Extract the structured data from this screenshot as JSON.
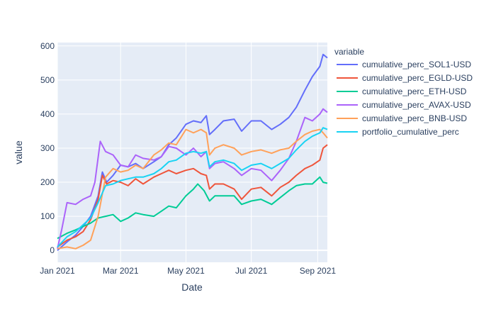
{
  "chart_data": {
    "type": "line",
    "xlabel": "Date",
    "ylabel": "value",
    "x_range": [
      "2021-01-01",
      "2021-09-10"
    ],
    "ylim": [
      -35,
      610
    ],
    "x_ticks": [
      {
        "date": "2021-01-01",
        "label": "Jan 2021"
      },
      {
        "date": "2021-03-01",
        "label": "Mar 2021"
      },
      {
        "date": "2021-05-01",
        "label": "May 2021"
      },
      {
        "date": "2021-07-01",
        "label": "Jul 2021"
      },
      {
        "date": "2021-09-01",
        "label": "Sep 2021"
      }
    ],
    "y_ticks": [
      0,
      100,
      200,
      300,
      400,
      500,
      600
    ],
    "grid": true,
    "background": "#e5ecf6",
    "legend": {
      "title": "variable",
      "position": "right"
    },
    "series": [
      {
        "name": "cumulative_perc_SOL1-USD",
        "color": "#636efa",
        "points": [
          [
            "2021-01-01",
            0
          ],
          [
            "2021-01-10",
            25
          ],
          [
            "2021-01-18",
            45
          ],
          [
            "2021-01-25",
            70
          ],
          [
            "2021-02-01",
            100
          ],
          [
            "2021-02-08",
            160
          ],
          [
            "2021-02-12",
            230
          ],
          [
            "2021-02-16",
            200
          ],
          [
            "2021-02-22",
            220
          ],
          [
            "2021-03-01",
            250
          ],
          [
            "2021-03-08",
            245
          ],
          [
            "2021-03-15",
            255
          ],
          [
            "2021-03-22",
            240
          ],
          [
            "2021-04-01",
            260
          ],
          [
            "2021-04-08",
            275
          ],
          [
            "2021-04-15",
            310
          ],
          [
            "2021-04-22",
            330
          ],
          [
            "2021-05-01",
            370
          ],
          [
            "2021-05-08",
            380
          ],
          [
            "2021-05-15",
            375
          ],
          [
            "2021-05-20",
            395
          ],
          [
            "2021-05-23",
            340
          ],
          [
            "2021-05-28",
            355
          ],
          [
            "2021-06-05",
            380
          ],
          [
            "2021-06-15",
            385
          ],
          [
            "2021-06-22",
            350
          ],
          [
            "2021-07-01",
            380
          ],
          [
            "2021-07-10",
            380
          ],
          [
            "2021-07-20",
            355
          ],
          [
            "2021-07-28",
            370
          ],
          [
            "2021-08-05",
            390
          ],
          [
            "2021-08-12",
            420
          ],
          [
            "2021-08-20",
            470
          ],
          [
            "2021-08-27",
            510
          ],
          [
            "2021-09-03",
            540
          ],
          [
            "2021-09-06",
            575
          ],
          [
            "2021-09-10",
            565
          ]
        ]
      },
      {
        "name": "cumulative_perc_EGLD-USD",
        "color": "#ef553b",
        "points": [
          [
            "2021-01-01",
            10
          ],
          [
            "2021-01-10",
            30
          ],
          [
            "2021-01-18",
            40
          ],
          [
            "2021-01-25",
            55
          ],
          [
            "2021-02-01",
            90
          ],
          [
            "2021-02-08",
            150
          ],
          [
            "2021-02-12",
            220
          ],
          [
            "2021-02-16",
            195
          ],
          [
            "2021-02-22",
            205
          ],
          [
            "2021-03-01",
            200
          ],
          [
            "2021-03-08",
            190
          ],
          [
            "2021-03-15",
            210
          ],
          [
            "2021-03-22",
            195
          ],
          [
            "2021-04-01",
            215
          ],
          [
            "2021-04-08",
            225
          ],
          [
            "2021-04-15",
            235
          ],
          [
            "2021-04-22",
            225
          ],
          [
            "2021-05-01",
            235
          ],
          [
            "2021-05-08",
            240
          ],
          [
            "2021-05-15",
            225
          ],
          [
            "2021-05-20",
            220
          ],
          [
            "2021-05-23",
            180
          ],
          [
            "2021-05-28",
            195
          ],
          [
            "2021-06-05",
            195
          ],
          [
            "2021-06-15",
            180
          ],
          [
            "2021-06-22",
            150
          ],
          [
            "2021-07-01",
            180
          ],
          [
            "2021-07-10",
            185
          ],
          [
            "2021-07-20",
            160
          ],
          [
            "2021-07-28",
            185
          ],
          [
            "2021-08-05",
            200
          ],
          [
            "2021-08-12",
            220
          ],
          [
            "2021-08-20",
            240
          ],
          [
            "2021-08-27",
            250
          ],
          [
            "2021-09-03",
            265
          ],
          [
            "2021-09-06",
            300
          ],
          [
            "2021-09-10",
            310
          ]
        ]
      },
      {
        "name": "cumulative_perc_ETH-USD",
        "color": "#00cc96",
        "points": [
          [
            "2021-01-01",
            35
          ],
          [
            "2021-01-10",
            50
          ],
          [
            "2021-01-18",
            60
          ],
          [
            "2021-01-25",
            70
          ],
          [
            "2021-02-01",
            80
          ],
          [
            "2021-02-08",
            95
          ],
          [
            "2021-02-15",
            100
          ],
          [
            "2021-02-22",
            105
          ],
          [
            "2021-03-01",
            85
          ],
          [
            "2021-03-08",
            95
          ],
          [
            "2021-03-15",
            110
          ],
          [
            "2021-03-22",
            105
          ],
          [
            "2021-04-01",
            100
          ],
          [
            "2021-04-08",
            115
          ],
          [
            "2021-04-15",
            130
          ],
          [
            "2021-04-22",
            125
          ],
          [
            "2021-05-01",
            160
          ],
          [
            "2021-05-08",
            180
          ],
          [
            "2021-05-12",
            195
          ],
          [
            "2021-05-18",
            175
          ],
          [
            "2021-05-23",
            145
          ],
          [
            "2021-05-28",
            160
          ],
          [
            "2021-06-05",
            160
          ],
          [
            "2021-06-15",
            160
          ],
          [
            "2021-06-22",
            135
          ],
          [
            "2021-07-01",
            145
          ],
          [
            "2021-07-10",
            150
          ],
          [
            "2021-07-20",
            135
          ],
          [
            "2021-07-28",
            155
          ],
          [
            "2021-08-05",
            175
          ],
          [
            "2021-08-12",
            190
          ],
          [
            "2021-08-20",
            195
          ],
          [
            "2021-08-27",
            195
          ],
          [
            "2021-09-03",
            215
          ],
          [
            "2021-09-06",
            200
          ],
          [
            "2021-09-10",
            197
          ]
        ]
      },
      {
        "name": "cumulative_perc_AVAX-USD",
        "color": "#ab63fa",
        "points": [
          [
            "2021-01-01",
            5
          ],
          [
            "2021-01-05",
            60
          ],
          [
            "2021-01-10",
            140
          ],
          [
            "2021-01-18",
            135
          ],
          [
            "2021-01-25",
            150
          ],
          [
            "2021-02-01",
            160
          ],
          [
            "2021-02-05",
            200
          ],
          [
            "2021-02-10",
            320
          ],
          [
            "2021-02-15",
            290
          ],
          [
            "2021-02-22",
            280
          ],
          [
            "2021-03-01",
            250
          ],
          [
            "2021-03-08",
            245
          ],
          [
            "2021-03-15",
            280
          ],
          [
            "2021-03-22",
            270
          ],
          [
            "2021-04-01",
            265
          ],
          [
            "2021-04-08",
            275
          ],
          [
            "2021-04-15",
            305
          ],
          [
            "2021-04-22",
            300
          ],
          [
            "2021-05-01",
            280
          ],
          [
            "2021-05-08",
            300
          ],
          [
            "2021-05-15",
            275
          ],
          [
            "2021-05-20",
            290
          ],
          [
            "2021-05-23",
            240
          ],
          [
            "2021-05-28",
            255
          ],
          [
            "2021-06-05",
            260
          ],
          [
            "2021-06-15",
            240
          ],
          [
            "2021-06-22",
            220
          ],
          [
            "2021-07-01",
            240
          ],
          [
            "2021-07-10",
            235
          ],
          [
            "2021-07-20",
            205
          ],
          [
            "2021-07-28",
            235
          ],
          [
            "2021-08-05",
            270
          ],
          [
            "2021-08-12",
            320
          ],
          [
            "2021-08-20",
            390
          ],
          [
            "2021-08-27",
            380
          ],
          [
            "2021-09-03",
            400
          ],
          [
            "2021-09-06",
            415
          ],
          [
            "2021-09-10",
            405
          ]
        ]
      },
      {
        "name": "cumulative_perc_BNB-USD",
        "color": "#ffa15a",
        "points": [
          [
            "2021-01-01",
            5
          ],
          [
            "2021-01-10",
            10
          ],
          [
            "2021-01-18",
            5
          ],
          [
            "2021-01-25",
            15
          ],
          [
            "2021-02-01",
            30
          ],
          [
            "2021-02-08",
            100
          ],
          [
            "2021-02-15",
            215
          ],
          [
            "2021-02-22",
            240
          ],
          [
            "2021-03-01",
            230
          ],
          [
            "2021-03-08",
            235
          ],
          [
            "2021-03-15",
            250
          ],
          [
            "2021-03-22",
            240
          ],
          [
            "2021-04-01",
            280
          ],
          [
            "2021-04-08",
            295
          ],
          [
            "2021-04-15",
            315
          ],
          [
            "2021-04-22",
            310
          ],
          [
            "2021-05-01",
            355
          ],
          [
            "2021-05-08",
            345
          ],
          [
            "2021-05-15",
            355
          ],
          [
            "2021-05-20",
            345
          ],
          [
            "2021-05-23",
            280
          ],
          [
            "2021-05-28",
            300
          ],
          [
            "2021-06-05",
            310
          ],
          [
            "2021-06-15",
            300
          ],
          [
            "2021-06-22",
            280
          ],
          [
            "2021-07-01",
            290
          ],
          [
            "2021-07-10",
            295
          ],
          [
            "2021-07-20",
            285
          ],
          [
            "2021-07-28",
            295
          ],
          [
            "2021-08-05",
            300
          ],
          [
            "2021-08-12",
            320
          ],
          [
            "2021-08-20",
            340
          ],
          [
            "2021-08-27",
            350
          ],
          [
            "2021-09-03",
            355
          ],
          [
            "2021-09-06",
            345
          ],
          [
            "2021-09-10",
            330
          ]
        ]
      },
      {
        "name": "portfolio_cumulative_perc",
        "color": "#19d3f3",
        "points": [
          [
            "2021-01-01",
            10
          ],
          [
            "2021-01-10",
            40
          ],
          [
            "2021-01-18",
            55
          ],
          [
            "2021-01-25",
            75
          ],
          [
            "2021-02-01",
            95
          ],
          [
            "2021-02-08",
            140
          ],
          [
            "2021-02-15",
            190
          ],
          [
            "2021-02-22",
            195
          ],
          [
            "2021-03-01",
            205
          ],
          [
            "2021-03-08",
            210
          ],
          [
            "2021-03-15",
            215
          ],
          [
            "2021-03-22",
            215
          ],
          [
            "2021-04-01",
            225
          ],
          [
            "2021-04-08",
            240
          ],
          [
            "2021-04-15",
            260
          ],
          [
            "2021-04-22",
            265
          ],
          [
            "2021-05-01",
            285
          ],
          [
            "2021-05-08",
            290
          ],
          [
            "2021-05-15",
            285
          ],
          [
            "2021-05-20",
            290
          ],
          [
            "2021-05-23",
            245
          ],
          [
            "2021-05-28",
            260
          ],
          [
            "2021-06-05",
            265
          ],
          [
            "2021-06-15",
            255
          ],
          [
            "2021-06-22",
            235
          ],
          [
            "2021-07-01",
            250
          ],
          [
            "2021-07-10",
            255
          ],
          [
            "2021-07-20",
            240
          ],
          [
            "2021-07-28",
            255
          ],
          [
            "2021-08-05",
            270
          ],
          [
            "2021-08-12",
            295
          ],
          [
            "2021-08-20",
            320
          ],
          [
            "2021-08-27",
            335
          ],
          [
            "2021-09-03",
            345
          ],
          [
            "2021-09-06",
            360
          ],
          [
            "2021-09-10",
            355
          ]
        ]
      }
    ]
  }
}
